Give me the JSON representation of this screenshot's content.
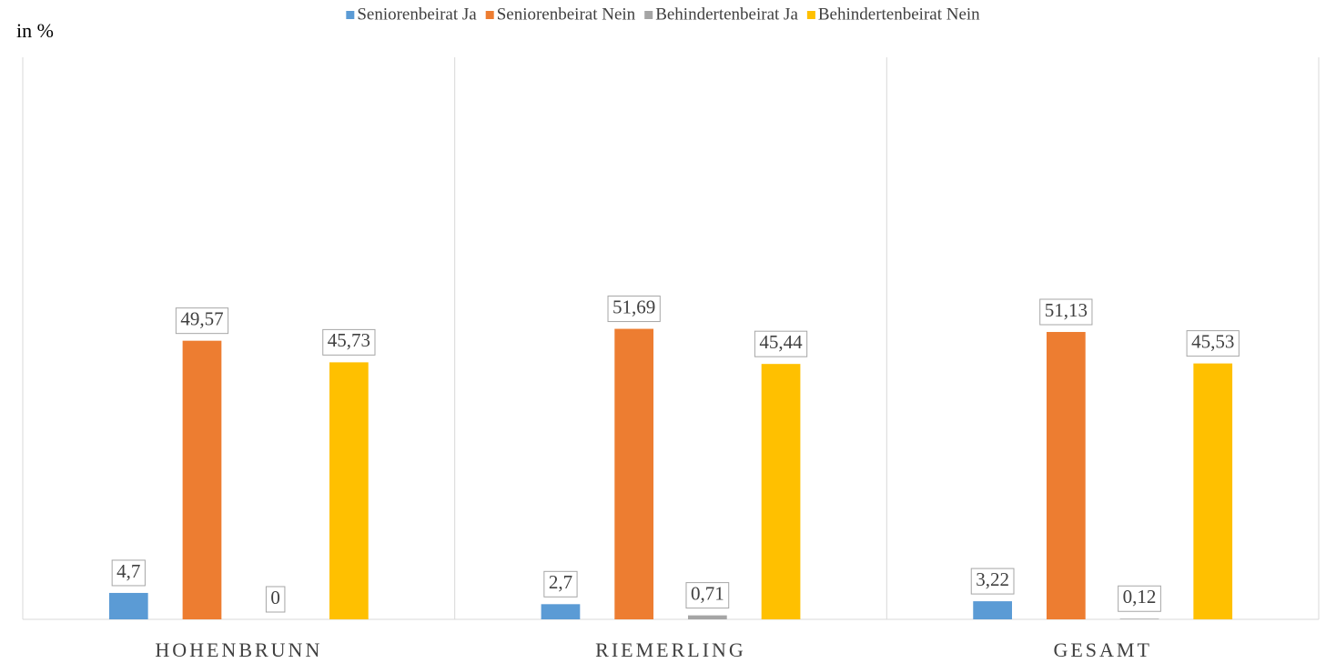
{
  "chart_data": {
    "type": "bar",
    "y_label": "in %",
    "categories": [
      "HOHENBRUNN",
      "RIEMERLING",
      "GESAMT"
    ],
    "series": [
      {
        "name": "Seniorenbeirat Ja",
        "color": "#5b9bd5",
        "values": [
          4.7,
          2.7,
          3.22
        ],
        "value_labels": [
          "4,7",
          "2,7",
          "3,22"
        ]
      },
      {
        "name": "Seniorenbeirat Nein",
        "color": "#ed7d31",
        "values": [
          49.57,
          51.69,
          51.13
        ],
        "value_labels": [
          "49,57",
          "51,69",
          "51,13"
        ]
      },
      {
        "name": "Behindertenbeirat Ja",
        "color": "#a5a5a5",
        "values": [
          0,
          0.71,
          0.12
        ],
        "value_labels": [
          "0",
          "0,71",
          "0,12"
        ]
      },
      {
        "name": "Behindertenbeirat Nein",
        "color": "#ffc000",
        "values": [
          45.73,
          45.44,
          45.53
        ],
        "value_labels": [
          "45,73",
          "45,44",
          "45,53"
        ]
      }
    ],
    "ylim": [
      0,
      100
    ],
    "legend": "top"
  }
}
